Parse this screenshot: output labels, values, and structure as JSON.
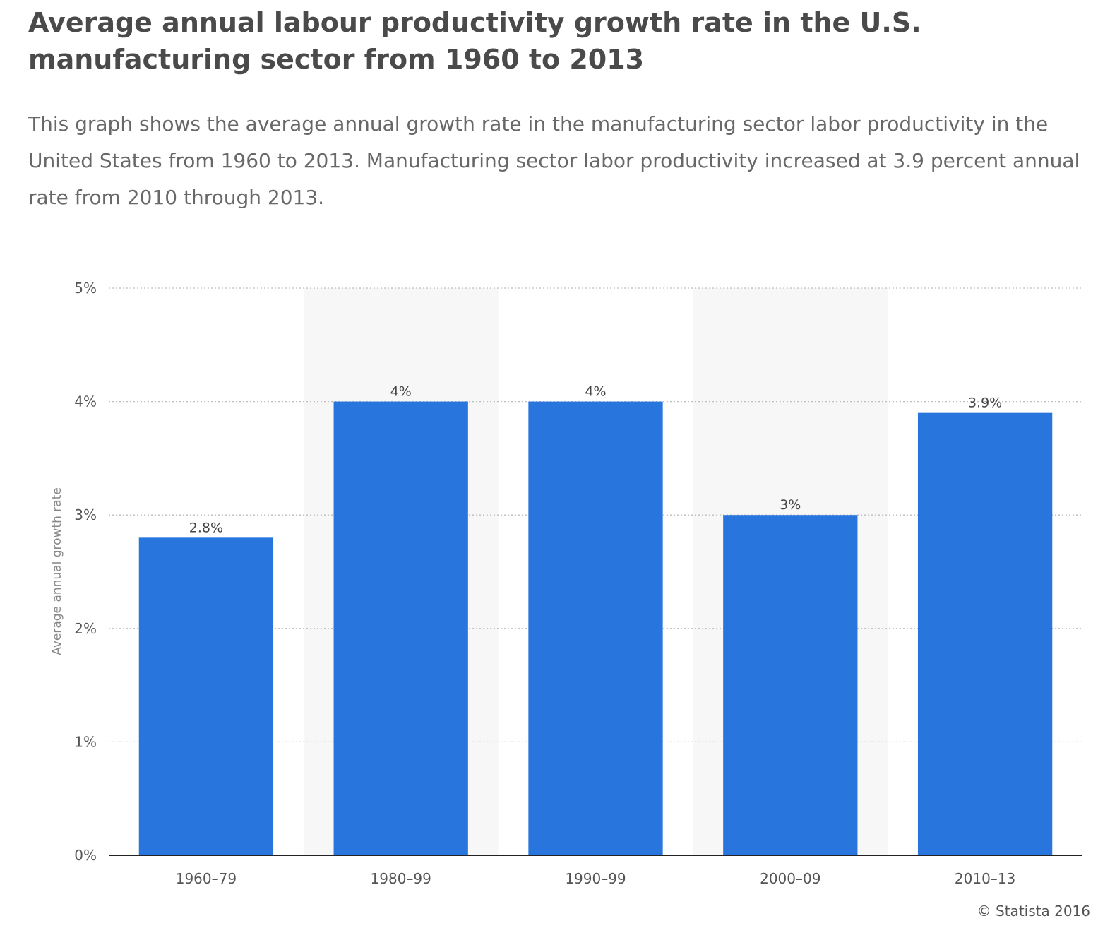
{
  "header": {
    "title": "Average annual labour productivity growth rate in the U.S. manufacturing sector from 1960 to 2013",
    "description": "This graph shows the average annual growth rate in the manufacturing sector labor productivity in the United States from 1960 to 2013. Manufacturing sector labor productivity increased at 3.9 percent annual rate from 2010 through 2013."
  },
  "chart_data": {
    "type": "bar",
    "title": "Average annual labour productivity growth rate in the U.S. manufacturing sector from 1960 to 2013",
    "categories": [
      "1960–79",
      "1980–99",
      "1990–99",
      "2000–09",
      "2010–13"
    ],
    "values": [
      2.8,
      4,
      4,
      3,
      3.9
    ],
    "value_labels": [
      "2.8%",
      "4%",
      "4%",
      "3%",
      "3.9%"
    ],
    "xlabel": "",
    "ylabel": "Average annual growth rate",
    "ylim": [
      0,
      5
    ],
    "yticks": [
      0,
      1,
      2,
      3,
      4,
      5
    ],
    "ytick_labels": [
      "0%",
      "1%",
      "2%",
      "3%",
      "4%",
      "5%"
    ],
    "grid": true,
    "bar_color": "#2876dd"
  },
  "footer": {
    "source": "© Statista 2016"
  }
}
